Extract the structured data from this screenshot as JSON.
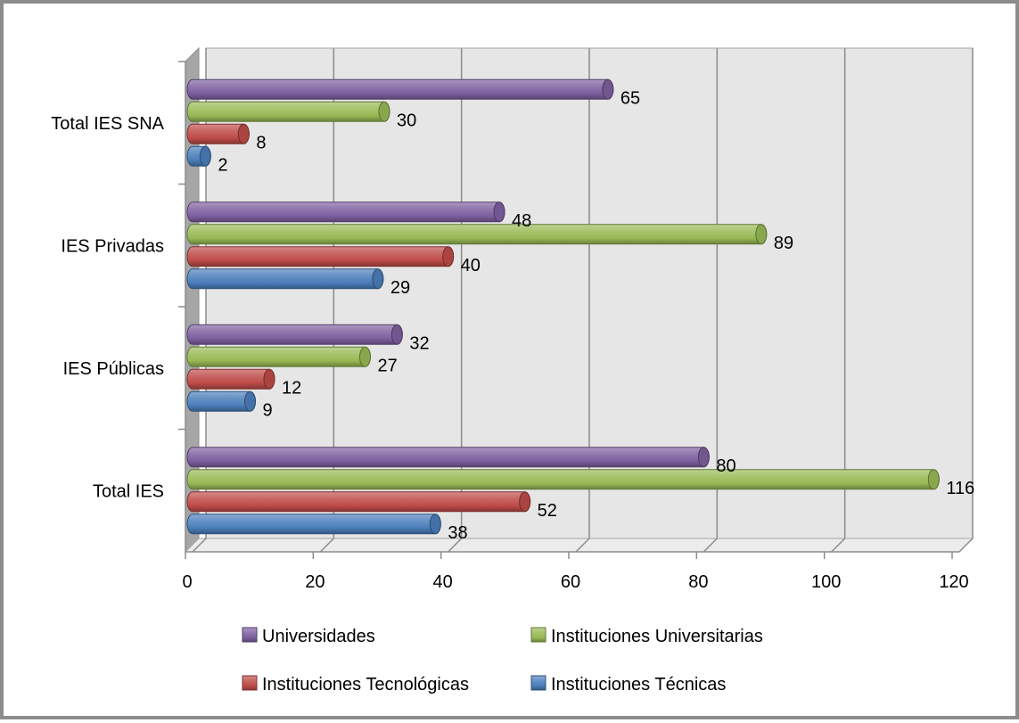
{
  "chart_data": {
    "type": "bar",
    "orientation": "horizontal",
    "style": "3d-cylinder",
    "categories": [
      "Total IES",
      "IES Públicas",
      "IES Privadas",
      "Total IES SNA"
    ],
    "series": [
      {
        "name": "Instituciones Técnicas",
        "color": "#4a7ebb",
        "values": [
          38,
          9,
          29,
          2
        ]
      },
      {
        "name": "Instituciones Tecnológicas",
        "color": "#be4b48",
        "values": [
          52,
          12,
          40,
          8
        ]
      },
      {
        "name": "Instituciones Universitarias",
        "color": "#98b954",
        "values": [
          116,
          27,
          89,
          30
        ]
      },
      {
        "name": "Universidades",
        "color": "#7d5fa0",
        "values": [
          80,
          32,
          48,
          65
        ]
      }
    ],
    "x_ticks": [
      "0",
      "20",
      "40",
      "60",
      "80",
      "100",
      "120"
    ],
    "xlim": [
      0,
      120
    ],
    "grid": true,
    "legend_position": "bottom",
    "legend_order": [
      "Universidades",
      "Instituciones Universitarias",
      "Instituciones Tecnológicas",
      "Instituciones Técnicas"
    ]
  }
}
